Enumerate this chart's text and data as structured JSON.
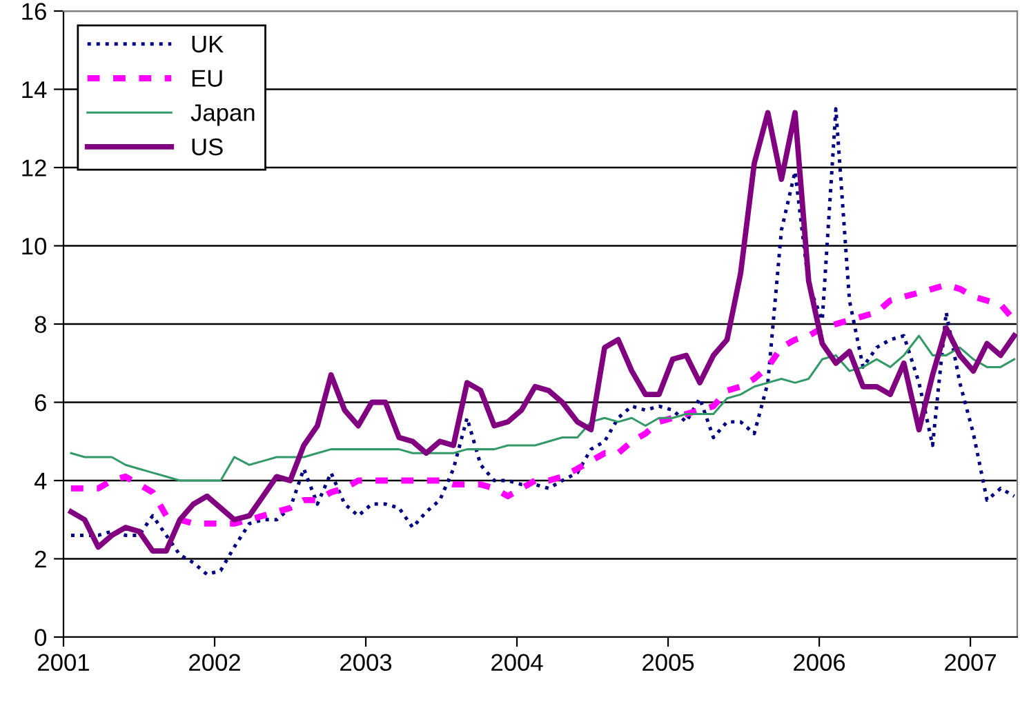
{
  "chart_data": {
    "type": "line",
    "x": [
      2001.05,
      2001.14,
      2001.23,
      2001.32,
      2001.41,
      2001.5,
      2001.59,
      2001.68,
      2001.77,
      2001.86,
      2001.95,
      2002.04,
      2002.13,
      2002.23,
      2002.32,
      2002.41,
      2002.5,
      2002.59,
      2002.68,
      2002.77,
      2002.86,
      2002.95,
      2003.04,
      2003.13,
      2003.22,
      2003.31,
      2003.4,
      2003.49,
      2003.58,
      2003.67,
      2003.76,
      2003.85,
      2003.94,
      2004.03,
      2004.12,
      2004.21,
      2004.3,
      2004.4,
      2004.49,
      2004.58,
      2004.67,
      2004.76,
      2004.85,
      2004.94,
      2005.03,
      2005.12,
      2005.21,
      2005.3,
      2005.39,
      2005.48,
      2005.57,
      2005.66,
      2005.75,
      2005.84,
      2005.93,
      2006.02,
      2006.11,
      2006.2,
      2006.29,
      2006.38,
      2006.47,
      2006.56,
      2006.66,
      2006.75,
      2006.84,
      2006.93,
      2007.02,
      2007.11,
      2007.2,
      2007.29
    ],
    "series": [
      {
        "name": "UK",
        "color": "#000080",
        "line_style": "dotted",
        "values": [
          2.6,
          2.6,
          2.6,
          2.7,
          2.6,
          2.6,
          3.1,
          2.6,
          2.1,
          1.9,
          1.6,
          1.7,
          2.3,
          2.9,
          3.0,
          3.0,
          3.3,
          4.3,
          3.4,
          4.2,
          3.4,
          3.1,
          3.4,
          3.4,
          3.3,
          2.8,
          3.2,
          3.5,
          4.3,
          5.6,
          4.4,
          4.0,
          4.0,
          3.9,
          3.9,
          3.8,
          4.0,
          4.2,
          4.8,
          5.0,
          5.6,
          5.9,
          5.8,
          5.9,
          5.8,
          5.5,
          6.1,
          5.1,
          5.5,
          5.5,
          5.2,
          6.5,
          10.4,
          11.9,
          9.0,
          8.1,
          13.5,
          8.6,
          6.9,
          7.4,
          7.6,
          7.7,
          6.5,
          4.9,
          8.3,
          6.5,
          5.2,
          3.5,
          3.8,
          3.6
        ]
      },
      {
        "name": "EU",
        "color": "#ff00ff",
        "line_style": "dashed",
        "values": [
          3.8,
          3.8,
          3.8,
          4.0,
          4.1,
          3.9,
          3.7,
          3.1,
          3.0,
          2.9,
          2.9,
          2.9,
          2.9,
          3.0,
          3.1,
          3.2,
          3.3,
          3.5,
          3.5,
          3.7,
          3.8,
          4.0,
          4.0,
          4.0,
          4.0,
          4.0,
          4.0,
          4.0,
          3.9,
          3.9,
          3.9,
          3.8,
          3.6,
          3.8,
          4.0,
          4.0,
          4.1,
          4.3,
          4.5,
          4.7,
          4.7,
          5.0,
          5.2,
          5.5,
          5.6,
          5.7,
          5.8,
          5.9,
          6.3,
          6.4,
          6.6,
          6.9,
          7.4,
          7.6,
          7.7,
          7.9,
          8.0,
          8.1,
          8.2,
          8.3,
          8.6,
          8.7,
          8.8,
          8.9,
          9.0,
          8.9,
          8.7,
          8.6,
          8.5,
          8.1
        ]
      },
      {
        "name": "Japan",
        "color": "#339966",
        "line_style": "solid",
        "values": [
          4.7,
          4.6,
          4.6,
          4.6,
          4.4,
          4.3,
          4.2,
          4.1,
          4.0,
          4.0,
          4.0,
          4.0,
          4.6,
          4.4,
          4.5,
          4.6,
          4.6,
          4.6,
          4.7,
          4.8,
          4.8,
          4.8,
          4.8,
          4.8,
          4.8,
          4.7,
          4.7,
          4.7,
          4.7,
          4.8,
          4.8,
          4.8,
          4.9,
          4.9,
          4.9,
          5.0,
          5.1,
          5.1,
          5.5,
          5.6,
          5.5,
          5.6,
          5.4,
          5.6,
          5.6,
          5.7,
          5.7,
          5.7,
          6.1,
          6.2,
          6.4,
          6.5,
          6.6,
          6.5,
          6.6,
          7.1,
          7.2,
          6.8,
          6.9,
          7.1,
          6.9,
          7.2,
          7.7,
          7.2,
          7.2,
          7.4,
          7.1,
          6.9,
          6.9,
          7.1
        ]
      },
      {
        "name": "US",
        "color": "#800080",
        "line_style": "solid",
        "values": [
          3.2,
          3.0,
          2.3,
          2.6,
          2.8,
          2.7,
          2.2,
          2.2,
          3.0,
          3.4,
          3.6,
          3.3,
          3.0,
          3.1,
          3.6,
          4.1,
          4.0,
          4.9,
          5.4,
          6.7,
          5.8,
          5.4,
          6.0,
          6.0,
          5.1,
          5.0,
          4.7,
          5.0,
          4.9,
          6.5,
          6.3,
          5.4,
          5.5,
          5.8,
          6.4,
          6.3,
          6.0,
          5.5,
          5.3,
          7.4,
          7.6,
          6.8,
          6.2,
          6.2,
          7.1,
          7.2,
          6.5,
          7.2,
          7.6,
          9.3,
          12.1,
          13.4,
          11.7,
          13.4,
          9.1,
          7.5,
          7.0,
          7.3,
          6.4,
          6.4,
          6.2,
          7.0,
          5.3,
          6.7,
          7.9,
          7.2,
          6.8,
          7.5,
          7.2,
          7.7
        ]
      }
    ],
    "xlim": [
      2001,
      2007.31
    ],
    "xticks": [
      2001,
      2002,
      2003,
      2004,
      2005,
      2006,
      2007
    ],
    "ylim": [
      0,
      16
    ],
    "yticks": [
      0,
      2,
      4,
      6,
      8,
      10,
      12,
      14,
      16
    ],
    "grid": "y",
    "legend": "top left"
  }
}
